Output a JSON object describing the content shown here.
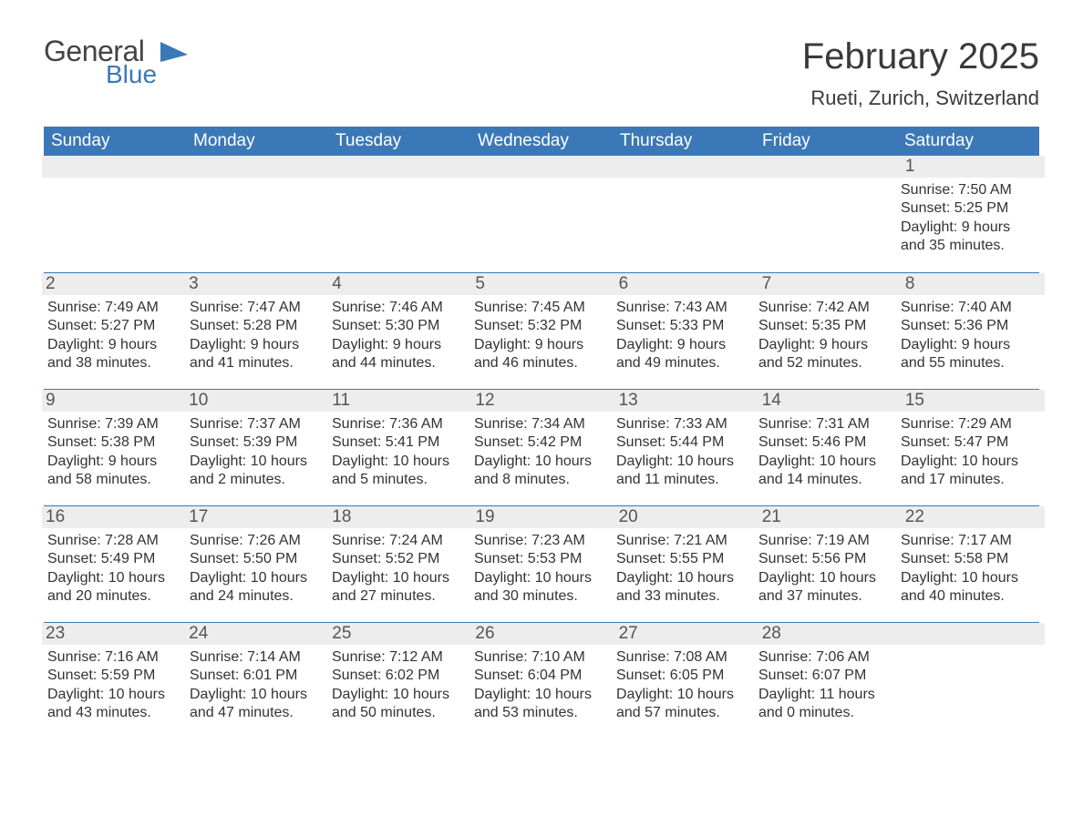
{
  "brand": {
    "word1": "General",
    "word2": "Blue",
    "accent_color": "#3b78b8"
  },
  "title": "February 2025",
  "subtitle": "Rueti, Zurich, Switzerland",
  "colors": {
    "header_bg": "#3b78b8",
    "header_text": "#ffffff",
    "daynum_bg": "#ededed",
    "text": "#333333",
    "rule": "#3b78b8",
    "page_bg": "#ffffff"
  },
  "typography": {
    "title_fontsize": 40,
    "subtitle_fontsize": 22,
    "weekday_fontsize": 19,
    "body_fontsize": 16
  },
  "weekdays": [
    "Sunday",
    "Monday",
    "Tuesday",
    "Wednesday",
    "Thursday",
    "Friday",
    "Saturday"
  ],
  "weeks": [
    [
      null,
      null,
      null,
      null,
      null,
      null,
      {
        "n": "1",
        "sunrise": "7:50 AM",
        "sunset": "5:25 PM",
        "dl": "9 hours and 35 minutes."
      }
    ],
    [
      {
        "n": "2",
        "sunrise": "7:49 AM",
        "sunset": "5:27 PM",
        "dl": "9 hours and 38 minutes."
      },
      {
        "n": "3",
        "sunrise": "7:47 AM",
        "sunset": "5:28 PM",
        "dl": "9 hours and 41 minutes."
      },
      {
        "n": "4",
        "sunrise": "7:46 AM",
        "sunset": "5:30 PM",
        "dl": "9 hours and 44 minutes."
      },
      {
        "n": "5",
        "sunrise": "7:45 AM",
        "sunset": "5:32 PM",
        "dl": "9 hours and 46 minutes."
      },
      {
        "n": "6",
        "sunrise": "7:43 AM",
        "sunset": "5:33 PM",
        "dl": "9 hours and 49 minutes."
      },
      {
        "n": "7",
        "sunrise": "7:42 AM",
        "sunset": "5:35 PM",
        "dl": "9 hours and 52 minutes."
      },
      {
        "n": "8",
        "sunrise": "7:40 AM",
        "sunset": "5:36 PM",
        "dl": "9 hours and 55 minutes."
      }
    ],
    [
      {
        "n": "9",
        "sunrise": "7:39 AM",
        "sunset": "5:38 PM",
        "dl": "9 hours and 58 minutes."
      },
      {
        "n": "10",
        "sunrise": "7:37 AM",
        "sunset": "5:39 PM",
        "dl": "10 hours and 2 minutes."
      },
      {
        "n": "11",
        "sunrise": "7:36 AM",
        "sunset": "5:41 PM",
        "dl": "10 hours and 5 minutes."
      },
      {
        "n": "12",
        "sunrise": "7:34 AM",
        "sunset": "5:42 PM",
        "dl": "10 hours and 8 minutes."
      },
      {
        "n": "13",
        "sunrise": "7:33 AM",
        "sunset": "5:44 PM",
        "dl": "10 hours and 11 minutes."
      },
      {
        "n": "14",
        "sunrise": "7:31 AM",
        "sunset": "5:46 PM",
        "dl": "10 hours and 14 minutes."
      },
      {
        "n": "15",
        "sunrise": "7:29 AM",
        "sunset": "5:47 PM",
        "dl": "10 hours and 17 minutes."
      }
    ],
    [
      {
        "n": "16",
        "sunrise": "7:28 AM",
        "sunset": "5:49 PM",
        "dl": "10 hours and 20 minutes."
      },
      {
        "n": "17",
        "sunrise": "7:26 AM",
        "sunset": "5:50 PM",
        "dl": "10 hours and 24 minutes."
      },
      {
        "n": "18",
        "sunrise": "7:24 AM",
        "sunset": "5:52 PM",
        "dl": "10 hours and 27 minutes."
      },
      {
        "n": "19",
        "sunrise": "7:23 AM",
        "sunset": "5:53 PM",
        "dl": "10 hours and 30 minutes."
      },
      {
        "n": "20",
        "sunrise": "7:21 AM",
        "sunset": "5:55 PM",
        "dl": "10 hours and 33 minutes."
      },
      {
        "n": "21",
        "sunrise": "7:19 AM",
        "sunset": "5:56 PM",
        "dl": "10 hours and 37 minutes."
      },
      {
        "n": "22",
        "sunrise": "7:17 AM",
        "sunset": "5:58 PM",
        "dl": "10 hours and 40 minutes."
      }
    ],
    [
      {
        "n": "23",
        "sunrise": "7:16 AM",
        "sunset": "5:59 PM",
        "dl": "10 hours and 43 minutes."
      },
      {
        "n": "24",
        "sunrise": "7:14 AM",
        "sunset": "6:01 PM",
        "dl": "10 hours and 47 minutes."
      },
      {
        "n": "25",
        "sunrise": "7:12 AM",
        "sunset": "6:02 PM",
        "dl": "10 hours and 50 minutes."
      },
      {
        "n": "26",
        "sunrise": "7:10 AM",
        "sunset": "6:04 PM",
        "dl": "10 hours and 53 minutes."
      },
      {
        "n": "27",
        "sunrise": "7:08 AM",
        "sunset": "6:05 PM",
        "dl": "10 hours and 57 minutes."
      },
      {
        "n": "28",
        "sunrise": "7:06 AM",
        "sunset": "6:07 PM",
        "dl": "11 hours and 0 minutes."
      },
      null
    ]
  ],
  "labels": {
    "sunrise": "Sunrise:",
    "sunset": "Sunset:",
    "daylight": "Daylight:"
  }
}
